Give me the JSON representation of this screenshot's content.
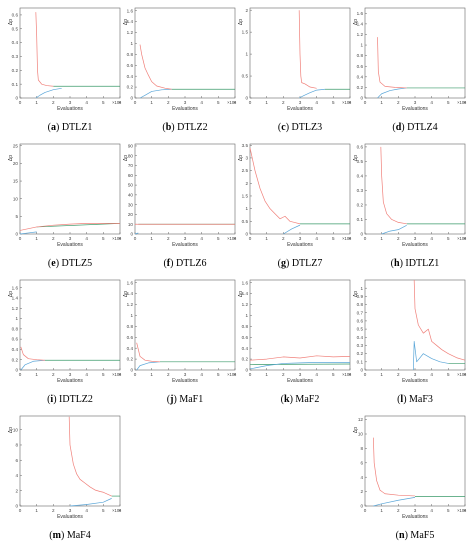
{
  "figure": {
    "ylabel": "Δp",
    "xlabel": "Evaluations",
    "x_exponent": "×10⁴",
    "colors": {
      "red": "#f0807a",
      "blue": "#5aa6d8",
      "green": "#3a9a6a",
      "axis": "#666666"
    }
  },
  "chart_data": [
    {
      "id": "a",
      "name": "DTLZ1",
      "type": "line",
      "xlim": [
        0,
        6
      ],
      "ylim": [
        0,
        0.65
      ],
      "yticks": [
        "0",
        "0.1",
        "0.2",
        "0.3",
        "0.4",
        "0.5",
        "0.6"
      ],
      "ytick_values": [
        0,
        0.1,
        0.2,
        0.3,
        0.4,
        0.5,
        0.6
      ],
      "xticks": [
        "0",
        "1",
        "2",
        "3",
        "4",
        "5",
        "6"
      ],
      "red": [
        [
          0.95,
          0.62
        ],
        [
          1.0,
          0.45
        ],
        [
          1.05,
          0.2
        ],
        [
          1.1,
          0.13
        ],
        [
          1.3,
          0.1
        ],
        [
          1.6,
          0.09
        ],
        [
          2.0,
          0.085
        ]
      ],
      "blue": [
        [
          0.95,
          0.0
        ],
        [
          1.2,
          0.02
        ],
        [
          1.5,
          0.04
        ],
        [
          2.0,
          0.06
        ],
        [
          2.5,
          0.07
        ]
      ],
      "green": [
        [
          2.0,
          0.085
        ],
        [
          6.0,
          0.085
        ]
      ]
    },
    {
      "id": "b",
      "name": "DTLZ2",
      "type": "line",
      "xlim": [
        0,
        6
      ],
      "ylim": [
        0,
        1.65
      ],
      "yticks": [
        "0",
        "0.2",
        "0.4",
        "0.6",
        "0.8",
        "1",
        "1.2",
        "1.4",
        "1.6"
      ],
      "ytick_values": [
        0,
        0.2,
        0.4,
        0.6,
        0.8,
        1,
        1.2,
        1.4,
        1.6
      ],
      "xticks": [
        "0",
        "1",
        "2",
        "3",
        "4",
        "5",
        "6"
      ],
      "red": [
        [
          0.3,
          0.98
        ],
        [
          0.4,
          0.8
        ],
        [
          0.6,
          0.55
        ],
        [
          0.8,
          0.42
        ],
        [
          1.0,
          0.3
        ],
        [
          1.3,
          0.22
        ],
        [
          1.8,
          0.18
        ],
        [
          2.2,
          0.16
        ]
      ],
      "blue": [
        [
          0.3,
          0.0
        ],
        [
          0.6,
          0.05
        ],
        [
          1.0,
          0.12
        ],
        [
          1.6,
          0.15
        ],
        [
          2.2,
          0.16
        ]
      ],
      "green": [
        [
          2.2,
          0.16
        ],
        [
          6.0,
          0.16
        ]
      ]
    },
    {
      "id": "c",
      "name": "DTLZ3",
      "type": "line",
      "xlim": [
        0,
        6
      ],
      "ylim": [
        0,
        2.05
      ],
      "yticks": [
        "0",
        "0.5",
        "1",
        "1.5",
        "2"
      ],
      "ytick_values": [
        0,
        0.5,
        1,
        1.5,
        2
      ],
      "xticks": [
        "0",
        "1",
        "2",
        "3",
        "4",
        "5",
        "6"
      ],
      "red": [
        [
          2.95,
          2.0
        ],
        [
          3.0,
          1.0
        ],
        [
          3.05,
          0.5
        ],
        [
          3.1,
          0.35
        ],
        [
          3.3,
          0.32
        ],
        [
          3.6,
          0.25
        ],
        [
          4.0,
          0.22
        ]
      ],
      "blue": [
        [
          2.95,
          0.0
        ],
        [
          3.2,
          0.05
        ],
        [
          3.6,
          0.12
        ],
        [
          4.0,
          0.18
        ],
        [
          4.5,
          0.2
        ]
      ],
      "green": [
        [
          4.5,
          0.2
        ],
        [
          6.0,
          0.2
        ]
      ]
    },
    {
      "id": "d",
      "name": "DTLZ4",
      "type": "line",
      "xlim": [
        0,
        6
      ],
      "ylim": [
        0,
        1.7
      ],
      "yticks": [
        "0",
        "0.2",
        "0.4",
        "0.6",
        "0.8",
        "1",
        "1.2",
        "1.4",
        "1.6"
      ],
      "ytick_values": [
        0,
        0.2,
        0.4,
        0.6,
        0.8,
        1,
        1.2,
        1.4,
        1.6
      ],
      "xticks": [
        "0",
        "1",
        "2",
        "3",
        "4",
        "5",
        "6"
      ],
      "red": [
        [
          0.75,
          1.15
        ],
        [
          0.8,
          0.5
        ],
        [
          0.9,
          0.3
        ],
        [
          1.2,
          0.22
        ],
        [
          1.8,
          0.2
        ],
        [
          2.5,
          0.19
        ]
      ],
      "blue": [
        [
          0.75,
          0.0
        ],
        [
          1.0,
          0.08
        ],
        [
          1.5,
          0.14
        ],
        [
          2.0,
          0.17
        ],
        [
          2.5,
          0.19
        ]
      ],
      "green": [
        [
          2.5,
          0.19
        ],
        [
          6.0,
          0.19
        ]
      ]
    },
    {
      "id": "e",
      "name": "DTLZ5",
      "type": "line",
      "xlim": [
        0,
        6
      ],
      "ylim": [
        0,
        25.5
      ],
      "yticks": [
        "0",
        "5",
        "10",
        "15",
        "20",
        "25"
      ],
      "ytick_values": [
        0,
        5,
        10,
        15,
        20,
        25
      ],
      "xticks": [
        "0",
        "1",
        "2",
        "3",
        "4",
        "5",
        "6"
      ],
      "red": [
        [
          0.0,
          1.0
        ],
        [
          1.0,
          2.0
        ],
        [
          2.0,
          2.5
        ],
        [
          3.0,
          2.8
        ],
        [
          4.0,
          3.0
        ],
        [
          6.0,
          3.0
        ]
      ],
      "blue": [
        [
          0.0,
          0.0
        ],
        [
          0.5,
          0.3
        ],
        [
          1.0,
          0.6
        ]
      ],
      "green": [
        [
          1.0,
          2.0
        ],
        [
          6.0,
          3.0
        ]
      ]
    },
    {
      "id": "f",
      "name": "DTLZ6",
      "type": "line",
      "xlim": [
        0,
        6
      ],
      "ylim": [
        0,
        92
      ],
      "yticks": [
        "0",
        "10",
        "20",
        "30",
        "40",
        "50",
        "60",
        "70",
        "80",
        "90"
      ],
      "ytick_values": [
        0,
        10,
        20,
        30,
        40,
        50,
        60,
        70,
        80,
        90
      ],
      "xticks": [
        "0",
        "1",
        "2",
        "3",
        "4",
        "5",
        "6"
      ],
      "red": [
        [
          0.0,
          10.0
        ],
        [
          6.0,
          10.0
        ]
      ],
      "blue": [
        [
          0.0,
          0.0
        ],
        [
          0.2,
          1.0
        ]
      ],
      "green": [
        [
          0.2,
          10.0
        ],
        [
          6.0,
          10.0
        ]
      ]
    },
    {
      "id": "g",
      "name": "DTLZ7",
      "type": "line",
      "xlim": [
        0,
        6
      ],
      "ylim": [
        0,
        3.55
      ],
      "yticks": [
        "0",
        "0.5",
        "1",
        "1.5",
        "2",
        "2.5",
        "3",
        "3.5"
      ],
      "ytick_values": [
        0,
        0.5,
        1,
        1.5,
        2,
        2.5,
        3,
        3.5
      ],
      "xticks": [
        "0",
        "1",
        "2",
        "3",
        "4",
        "5",
        "6"
      ],
      "red": [
        [
          0.0,
          3.4
        ],
        [
          0.3,
          2.5
        ],
        [
          0.6,
          1.8
        ],
        [
          0.9,
          1.3
        ],
        [
          1.2,
          1.0
        ],
        [
          1.5,
          0.8
        ],
        [
          1.8,
          0.6
        ],
        [
          2.1,
          0.7
        ],
        [
          2.4,
          0.5
        ],
        [
          2.7,
          0.45
        ],
        [
          3.0,
          0.4
        ]
      ],
      "blue": [
        [
          2.0,
          0.0
        ],
        [
          2.5,
          0.2
        ],
        [
          3.0,
          0.35
        ]
      ],
      "green": [
        [
          3.0,
          0.4
        ],
        [
          6.0,
          0.4
        ]
      ]
    },
    {
      "id": "h",
      "name": "IDTLZ1",
      "type": "line",
      "xlim": [
        0,
        6
      ],
      "ylim": [
        0,
        0.62
      ],
      "yticks": [
        "0",
        "0.1",
        "0.2",
        "0.3",
        "0.4",
        "0.5",
        "0.6"
      ],
      "ytick_values": [
        0,
        0.1,
        0.2,
        0.3,
        0.4,
        0.5,
        0.6
      ],
      "xticks": [
        "0",
        "1",
        "2",
        "3",
        "4",
        "5",
        "6"
      ],
      "red": [
        [
          0.95,
          0.6
        ],
        [
          1.0,
          0.4
        ],
        [
          1.1,
          0.22
        ],
        [
          1.3,
          0.14
        ],
        [
          1.6,
          0.1
        ],
        [
          2.0,
          0.08
        ],
        [
          2.5,
          0.07
        ]
      ],
      "blue": [
        [
          1.0,
          0.0
        ],
        [
          1.5,
          0.02
        ],
        [
          2.0,
          0.03
        ],
        [
          2.5,
          0.06
        ]
      ],
      "green": [
        [
          2.5,
          0.07
        ],
        [
          6.0,
          0.07
        ]
      ]
    },
    {
      "id": "i",
      "name": "IDTLZ2",
      "type": "line",
      "xlim": [
        0,
        6
      ],
      "ylim": [
        0,
        1.75
      ],
      "yticks": [
        "0",
        "0.2",
        "0.4",
        "0.6",
        "0.8",
        "1",
        "1.2",
        "1.4",
        "1.6"
      ],
      "ytick_values": [
        0,
        0.2,
        0.4,
        0.6,
        0.8,
        1,
        1.2,
        1.4,
        1.6
      ],
      "xticks": [
        "0",
        "1",
        "2",
        "3",
        "4",
        "5",
        "6"
      ],
      "red": [
        [
          0.05,
          0.45
        ],
        [
          0.2,
          0.3
        ],
        [
          0.5,
          0.22
        ],
        [
          1.0,
          0.2
        ],
        [
          1.5,
          0.19
        ]
      ],
      "blue": [
        [
          0.05,
          0.0
        ],
        [
          0.3,
          0.1
        ],
        [
          0.8,
          0.17
        ],
        [
          1.5,
          0.19
        ]
      ],
      "green": [
        [
          1.5,
          0.19
        ],
        [
          6.0,
          0.19
        ]
      ]
    },
    {
      "id": "j",
      "name": "MaF1",
      "type": "line",
      "xlim": [
        0,
        6
      ],
      "ylim": [
        0,
        1.65
      ],
      "yticks": [
        "0",
        "0.2",
        "0.4",
        "0.6",
        "0.8",
        "1",
        "1.2",
        "1.4",
        "1.6"
      ],
      "ytick_values": [
        0,
        0.2,
        0.4,
        0.6,
        0.8,
        1,
        1.2,
        1.4,
        1.6
      ],
      "xticks": [
        "0",
        "1",
        "2",
        "3",
        "4",
        "5",
        "6"
      ],
      "red": [
        [
          0.1,
          0.5
        ],
        [
          0.3,
          0.25
        ],
        [
          0.6,
          0.18
        ],
        [
          1.0,
          0.16
        ],
        [
          1.5,
          0.15
        ]
      ],
      "blue": [
        [
          0.1,
          0.0
        ],
        [
          0.3,
          0.08
        ],
        [
          0.8,
          0.13
        ],
        [
          1.5,
          0.15
        ]
      ],
      "green": [
        [
          1.5,
          0.15
        ],
        [
          6.0,
          0.15
        ]
      ]
    },
    {
      "id": "k",
      "name": "MaF2",
      "type": "line",
      "xlim": [
        0,
        6
      ],
      "ylim": [
        0,
        1.65
      ],
      "yticks": [
        "0",
        "0.2",
        "0.4",
        "0.6",
        "0.8",
        "1",
        "1.2",
        "1.4",
        "1.6"
      ],
      "ytick_values": [
        0,
        0.2,
        0.4,
        0.6,
        0.8,
        1,
        1.2,
        1.4,
        1.6
      ],
      "xticks": [
        "0",
        "1",
        "2",
        "3",
        "4",
        "5",
        "6"
      ],
      "red": [
        [
          0.0,
          0.18
        ],
        [
          1.0,
          0.2
        ],
        [
          2.0,
          0.24
        ],
        [
          3.0,
          0.22
        ],
        [
          4.0,
          0.26
        ],
        [
          5.0,
          0.24
        ],
        [
          6.0,
          0.25
        ]
      ],
      "blue": [
        [
          0.0,
          0.02
        ],
        [
          1.0,
          0.08
        ],
        [
          2.0,
          0.12
        ],
        [
          3.0,
          0.13
        ],
        [
          4.0,
          0.14
        ],
        [
          6.0,
          0.14
        ]
      ],
      "green": [
        [
          0.0,
          0.1
        ],
        [
          6.0,
          0.11
        ]
      ]
    },
    {
      "id": "l",
      "name": "MaF3",
      "type": "line",
      "xlim": [
        0,
        6
      ],
      "ylim": [
        0,
        1.1
      ],
      "yticks": [
        "0",
        "0.1",
        "0.2",
        "0.3",
        "0.4",
        "0.5",
        "0.6",
        "0.7",
        "0.8",
        "0.9",
        "1"
      ],
      "ytick_values": [
        0,
        0.1,
        0.2,
        0.3,
        0.4,
        0.5,
        0.6,
        0.7,
        0.8,
        0.9,
        1
      ],
      "xticks": [
        "0",
        "1",
        "2",
        "3",
        "4",
        "5",
        "6"
      ],
      "red": [
        [
          2.95,
          1.1
        ],
        [
          3.0,
          0.75
        ],
        [
          3.2,
          0.55
        ],
        [
          3.5,
          0.45
        ],
        [
          3.8,
          0.5
        ],
        [
          4.0,
          0.35
        ],
        [
          4.3,
          0.3
        ],
        [
          4.6,
          0.25
        ],
        [
          5.0,
          0.2
        ],
        [
          5.5,
          0.15
        ],
        [
          6.0,
          0.12
        ]
      ],
      "blue": [
        [
          2.9,
          0.0
        ],
        [
          2.95,
          0.35
        ],
        [
          3.1,
          0.1
        ],
        [
          3.5,
          0.2
        ],
        [
          4.0,
          0.14
        ],
        [
          4.5,
          0.1
        ],
        [
          5.0,
          0.08
        ]
      ],
      "green": [
        [
          5.0,
          0.08
        ],
        [
          6.0,
          0.08
        ]
      ]
    },
    {
      "id": "m",
      "name": "MaF4",
      "type": "line",
      "xlim": [
        0,
        6
      ],
      "ylim": [
        0,
        11.8
      ],
      "yticks": [
        "0",
        "2",
        "4",
        "6",
        "8",
        "10"
      ],
      "ytick_values": [
        0,
        2,
        4,
        6,
        8,
        10
      ],
      "xticks": [
        "0",
        "1",
        "2",
        "3",
        "4",
        "5",
        "6"
      ],
      "red": [
        [
          2.95,
          11.7
        ],
        [
          3.0,
          8.0
        ],
        [
          3.2,
          5.5
        ],
        [
          3.4,
          4.2
        ],
        [
          3.6,
          3.5
        ],
        [
          3.9,
          3.0
        ],
        [
          4.2,
          2.5
        ],
        [
          4.5,
          2.1
        ],
        [
          4.8,
          1.9
        ],
        [
          5.0,
          1.8
        ],
        [
          5.3,
          1.5
        ],
        [
          5.5,
          1.3
        ]
      ],
      "blue": [
        [
          3.0,
          0.0
        ],
        [
          4.0,
          0.2
        ],
        [
          5.0,
          0.5
        ],
        [
          5.5,
          1.0
        ]
      ],
      "green": [
        [
          5.5,
          1.3
        ],
        [
          6.0,
          1.3
        ]
      ]
    },
    {
      "id": "n",
      "name": "MaF5",
      "type": "line",
      "xlim": [
        0,
        6
      ],
      "ylim": [
        0,
        12.5
      ],
      "yticks": [
        "0",
        "2",
        "4",
        "6",
        "8",
        "10",
        "12"
      ],
      "ytick_values": [
        0,
        2,
        4,
        6,
        8,
        10,
        12
      ],
      "xticks": [
        "0",
        "1",
        "2",
        "3",
        "4",
        "5",
        "6"
      ],
      "red": [
        [
          0.5,
          9.5
        ],
        [
          0.55,
          6.0
        ],
        [
          0.7,
          3.5
        ],
        [
          0.9,
          2.2
        ],
        [
          1.2,
          1.7
        ],
        [
          2.0,
          1.5
        ],
        [
          3.0,
          1.4
        ]
      ],
      "blue": [
        [
          0.5,
          0.0
        ],
        [
          1.0,
          0.3
        ],
        [
          2.0,
          0.8
        ],
        [
          3.0,
          1.2
        ]
      ],
      "green": [
        [
          3.0,
          1.3
        ],
        [
          6.0,
          1.3
        ]
      ]
    }
  ]
}
